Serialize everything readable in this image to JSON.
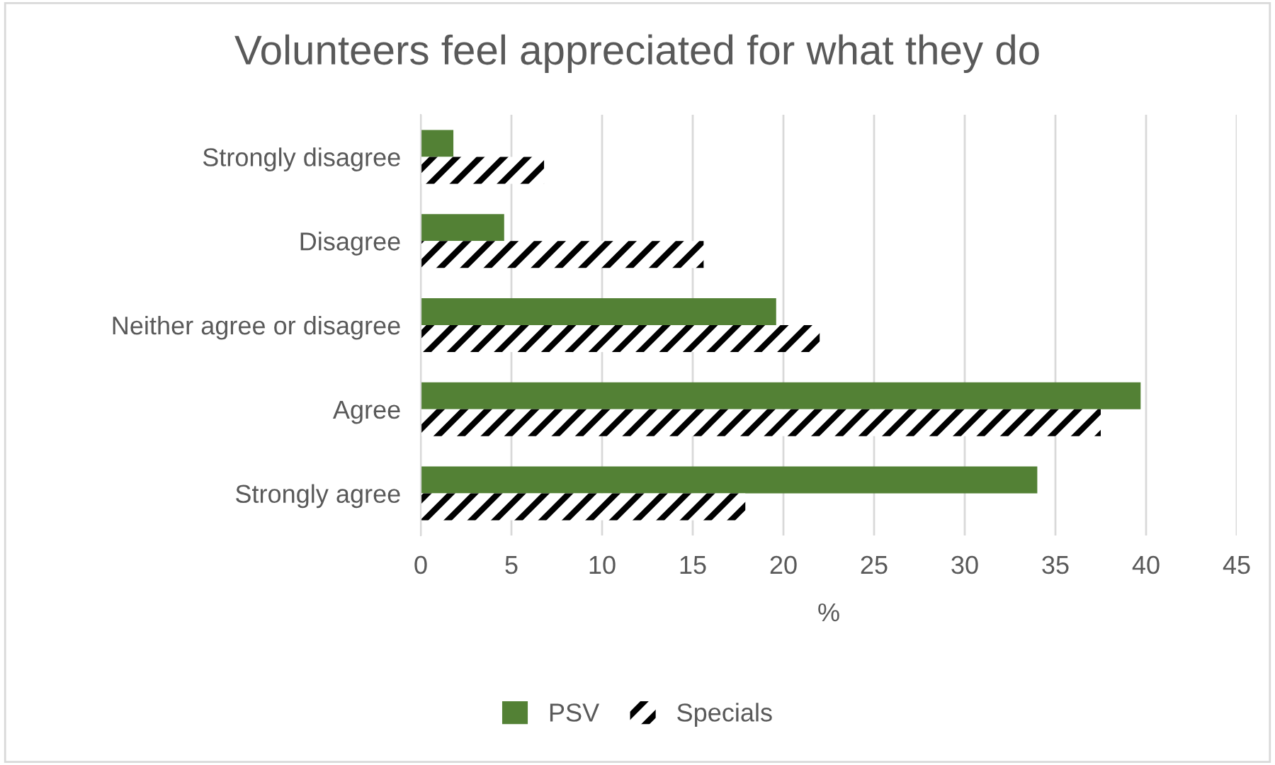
{
  "chart_data": {
    "type": "bar",
    "orientation": "horizontal",
    "title": "Volunteers feel appreciated for what they do",
    "xlabel": "%",
    "categories": [
      "Strongly disagree",
      "Disagree",
      "Neither agree or disagree",
      "Agree",
      "Strongly agree"
    ],
    "series": [
      {
        "name": "PSV",
        "color": "#538135",
        "values": [
          1.8,
          4.6,
          19.6,
          39.7,
          34.0
        ]
      },
      {
        "name": "Specials",
        "color": "#000000",
        "values": [
          6.8,
          15.6,
          22.0,
          37.5,
          17.9
        ]
      }
    ],
    "xlim": [
      0,
      45
    ],
    "xticks": [
      0,
      5,
      10,
      15,
      20,
      25,
      30,
      35,
      40,
      45
    ],
    "grid": "x",
    "legend": "bottom"
  }
}
